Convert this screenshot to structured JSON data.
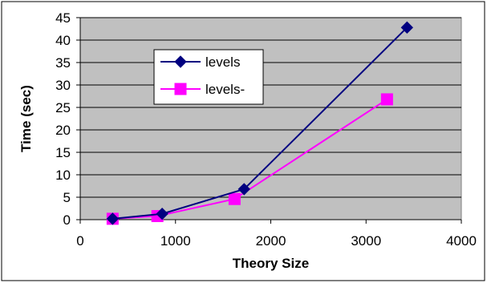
{
  "chart_data": {
    "type": "line",
    "xlabel": "Theory Size",
    "ylabel": "Time (sec)",
    "xlim": [
      0,
      4000
    ],
    "ylim": [
      0,
      45
    ],
    "x_ticks": [
      0,
      1000,
      2000,
      3000,
      4000
    ],
    "y_ticks": [
      0,
      5,
      10,
      15,
      20,
      25,
      30,
      35,
      40,
      45
    ],
    "grid": "horizontal",
    "legend_position": "inside-top-left",
    "plot_background": "#c0c0c0",
    "series": [
      {
        "name": "levels",
        "color": "#000080",
        "marker": "diamond",
        "x": [
          340,
          860,
          1720,
          3430
        ],
        "y": [
          0.2,
          1.3,
          6.8,
          42.8
        ]
      },
      {
        "name": "levels-",
        "color": "#ff00ff",
        "marker": "square",
        "x": [
          340,
          810,
          1620,
          3220
        ],
        "y": [
          0.2,
          0.8,
          4.6,
          26.8
        ]
      }
    ]
  }
}
